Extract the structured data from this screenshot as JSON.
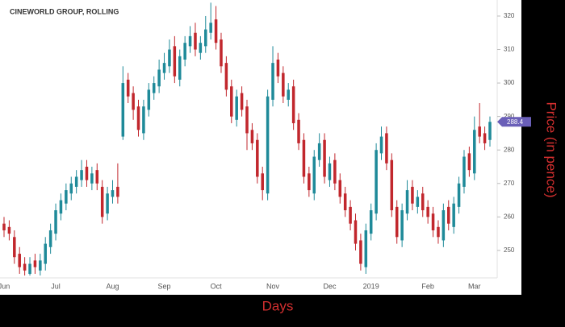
{
  "chart_data": {
    "type": "candlestick",
    "title": "CINEWORLD GROUP, ROLLING",
    "x_label": "Days",
    "y_label": "Price (in pence)",
    "up_color": "#1f8a99",
    "down_color": "#c1272d",
    "last_price_color": "#6a5fb8",
    "grid": false,
    "categories": [
      "Jun",
      null,
      null,
      null,
      null,
      null,
      null,
      null,
      null,
      null,
      "Jul",
      null,
      null,
      null,
      null,
      null,
      null,
      null,
      null,
      null,
      null,
      "Aug",
      null,
      null,
      null,
      null,
      null,
      null,
      null,
      null,
      null,
      "Sep",
      null,
      null,
      null,
      null,
      null,
      null,
      null,
      null,
      null,
      "Oct",
      null,
      null,
      null,
      null,
      null,
      null,
      null,
      null,
      null,
      null,
      "Nov",
      null,
      null,
      null,
      null,
      null,
      null,
      null,
      null,
      null,
      null,
      "Dec",
      null,
      null,
      null,
      null,
      null,
      null,
      null,
      "2019",
      null,
      null,
      null,
      null,
      null,
      null,
      null,
      null,
      null,
      null,
      "Feb",
      null,
      null,
      null,
      null,
      null,
      null,
      null,
      null,
      "Mar",
      null,
      null,
      null
    ],
    "open": [
      258,
      257,
      254,
      249,
      246,
      243,
      247,
      244,
      246,
      251,
      255,
      261,
      264,
      267,
      269,
      271,
      275,
      270,
      274,
      269,
      261,
      266,
      269,
      284,
      301,
      297,
      293,
      285,
      292,
      297,
      299,
      303,
      305,
      311,
      301,
      307,
      311,
      315,
      309,
      311,
      315,
      319,
      313,
      306,
      299,
      289,
      297,
      293,
      286,
      283,
      273,
      267,
      295,
      307,
      303,
      295,
      299,
      289,
      283,
      273,
      267,
      277,
      283,
      271,
      277,
      271,
      267,
      263,
      259,
      253,
      245,
      255,
      261,
      279,
      285,
      277,
      263,
      253,
      261,
      269,
      263,
      267,
      263,
      261,
      257,
      253,
      263,
      257,
      263,
      269,
      279,
      273,
      287,
      285,
      283
    ],
    "high": [
      260,
      259,
      256,
      251,
      248,
      248,
      249,
      249,
      254,
      258,
      264,
      267,
      270,
      272,
      274,
      277,
      277,
      275,
      276,
      271,
      269,
      271,
      276,
      305,
      303,
      299,
      295,
      295,
      300,
      302,
      307,
      309,
      313,
      314,
      310,
      314,
      317,
      318,
      314,
      320,
      324,
      323,
      315,
      308,
      301,
      298,
      299,
      295,
      288,
      285,
      275,
      298,
      311,
      309,
      305,
      300,
      301,
      291,
      285,
      275,
      280,
      285,
      285,
      278,
      279,
      273,
      269,
      265,
      261,
      255,
      258,
      264,
      282,
      287,
      287,
      279,
      265,
      264,
      271,
      271,
      268,
      269,
      265,
      263,
      259,
      264,
      265,
      266,
      272,
      280,
      281,
      290,
      294,
      287,
      290
    ],
    "low": [
      254,
      253,
      246,
      243,
      242.5,
      242.5,
      243,
      242.5,
      244,
      249,
      253,
      259,
      262,
      265,
      267,
      269,
      269,
      268,
      268,
      258,
      259,
      264,
      264,
      283,
      294,
      289,
      284,
      283,
      290,
      295,
      297,
      301,
      303,
      300,
      299,
      305,
      309,
      308,
      307,
      309,
      313,
      310,
      303,
      296,
      288,
      287,
      290,
      280,
      280,
      270,
      265,
      265,
      293,
      300,
      294,
      293,
      286,
      280,
      270,
      266,
      265,
      275,
      270,
      269,
      268,
      264,
      260,
      256,
      250,
      244,
      243,
      253,
      259,
      277,
      274,
      260,
      252,
      251,
      259,
      262,
      261,
      260,
      258,
      254,
      252,
      251,
      256,
      255,
      261,
      267,
      272,
      271,
      282,
      280,
      281
    ],
    "close": [
      256,
      255,
      248,
      245,
      244,
      246,
      245,
      247,
      252,
      256,
      262,
      265,
      268,
      270,
      272,
      274,
      271,
      273,
      270,
      260,
      267,
      268,
      266,
      300,
      296,
      292,
      286,
      293,
      298,
      300,
      304,
      306,
      310,
      302,
      308,
      312,
      314,
      310,
      312,
      316,
      318,
      312,
      305,
      298,
      290,
      296,
      292,
      285,
      282,
      272,
      268,
      296,
      306,
      302,
      296,
      298,
      288,
      282,
      272,
      268,
      278,
      282,
      272,
      276,
      270,
      266,
      262,
      258,
      252,
      246,
      256,
      262,
      280,
      284,
      276,
      262,
      254,
      262,
      268,
      264,
      266,
      262,
      260,
      256,
      254,
      262,
      258,
      264,
      270,
      278,
      274,
      286,
      284,
      282,
      288.4
    ],
    "ylim": [
      241.8,
      324.8
    ],
    "yticks": [
      250,
      260,
      270,
      280,
      290,
      300,
      310,
      320
    ]
  }
}
